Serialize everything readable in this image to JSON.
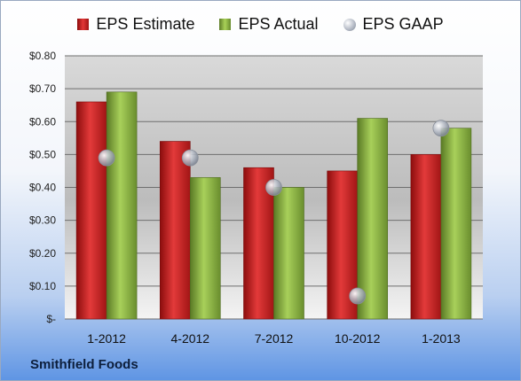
{
  "company": "Smithfield Foods",
  "chart_data": {
    "type": "bar",
    "categories": [
      "1-2012",
      "4-2012",
      "7-2012",
      "10-2012",
      "1-2013"
    ],
    "series": [
      {
        "name": "EPS Estimate",
        "kind": "bar",
        "color": "#d42a2a",
        "values": [
          0.66,
          0.54,
          0.46,
          0.45,
          0.5
        ]
      },
      {
        "name": "EPS Actual",
        "kind": "bar",
        "color": "#8db843",
        "values": [
          0.69,
          0.43,
          0.4,
          0.61,
          0.58
        ]
      },
      {
        "name": "EPS GAAP",
        "kind": "scatter",
        "color": "#b0b6c0",
        "values": [
          0.49,
          0.49,
          0.4,
          0.07,
          0.58
        ]
      }
    ],
    "yticks": [
      0,
      0.1,
      0.2,
      0.3,
      0.4,
      0.5,
      0.6,
      0.7,
      0.8
    ],
    "ytick_labels": [
      "$-",
      "$0.10",
      "$0.20",
      "$0.30",
      "$0.40",
      "$0.50",
      "$0.60",
      "$0.70",
      "$0.80"
    ],
    "ylim": [
      0,
      0.8
    ],
    "grid": true,
    "legend_position": "top"
  }
}
